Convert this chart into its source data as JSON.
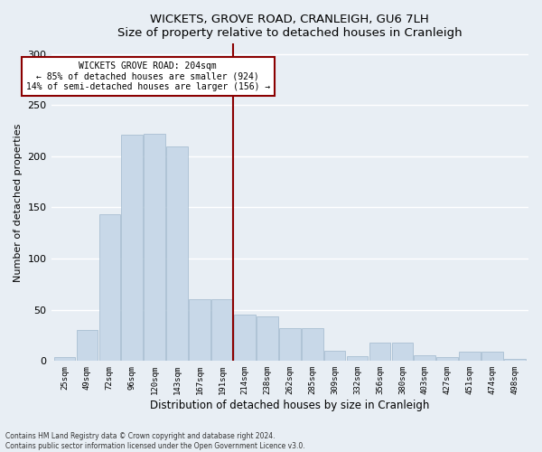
{
  "title": "WICKETS, GROVE ROAD, CRANLEIGH, GU6 7LH",
  "subtitle": "Size of property relative to detached houses in Cranleigh",
  "xlabel": "Distribution of detached houses by size in Cranleigh",
  "ylabel": "Number of detached properties",
  "bin_labels": [
    "25sqm",
    "49sqm",
    "72sqm",
    "96sqm",
    "120sqm",
    "143sqm",
    "167sqm",
    "191sqm",
    "214sqm",
    "238sqm",
    "262sqm",
    "285sqm",
    "309sqm",
    "332sqm",
    "356sqm",
    "380sqm",
    "403sqm",
    "427sqm",
    "451sqm",
    "474sqm",
    "498sqm"
  ],
  "bar_heights": [
    4,
    30,
    143,
    221,
    222,
    210,
    60,
    60,
    45,
    44,
    32,
    32,
    10,
    5,
    18,
    18,
    6,
    4,
    9,
    9,
    2
  ],
  "bar_color": "#c8d8e8",
  "bar_edge_color": "#a0b8cc",
  "vline_color": "#8b0000",
  "annotation_box_color": "#8b0000",
  "annotation_box_fill": "#ffffff",
  "annotation_line1": "WICKETS GROVE ROAD: 204sqm",
  "annotation_line2": "← 85% of detached houses are smaller (924)",
  "annotation_line3": "14% of semi-detached houses are larger (156) →",
  "ylim": [
    0,
    310
  ],
  "yticks": [
    0,
    50,
    100,
    150,
    200,
    250,
    300
  ],
  "footnote1": "Contains HM Land Registry data © Crown copyright and database right 2024.",
  "footnote2": "Contains public sector information licensed under the Open Government Licence v3.0.",
  "bg_color": "#e8eef4",
  "grid_color": "#ffffff"
}
